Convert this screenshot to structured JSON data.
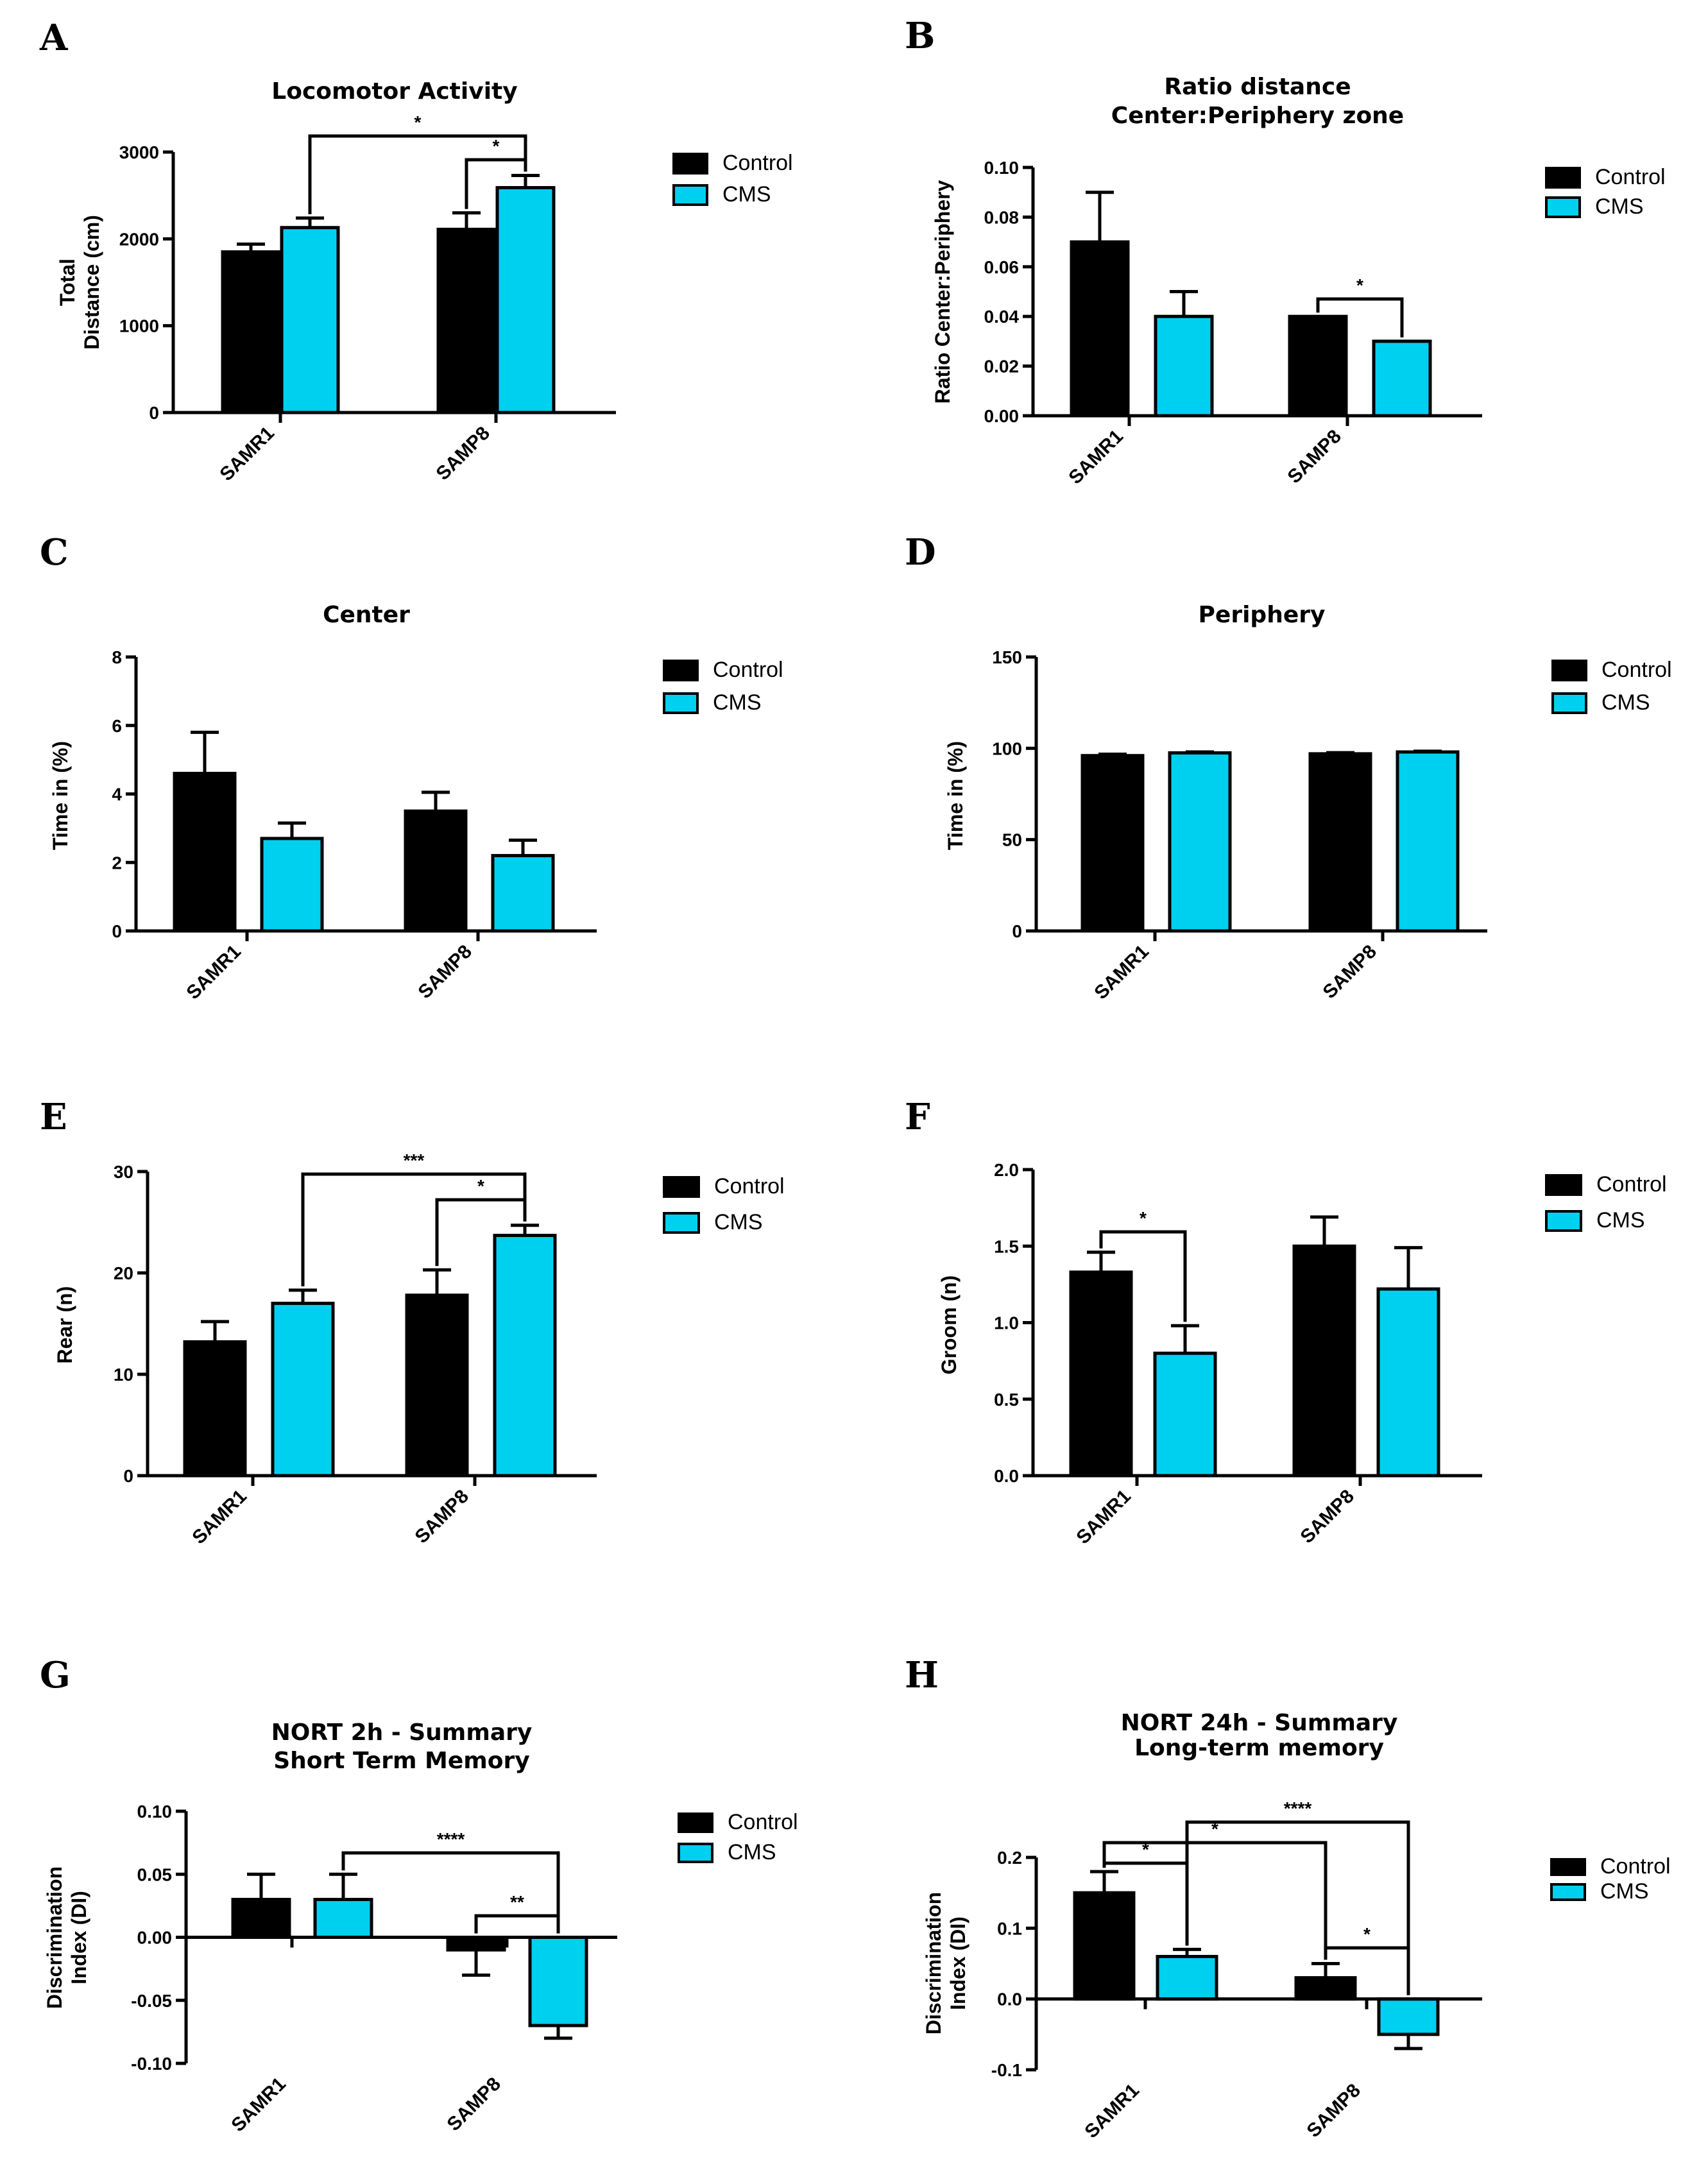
{
  "colors": {
    "control": "#000000",
    "cms": "#00d0f0"
  },
  "chart_data": [
    {
      "panel": "A",
      "type": "bar",
      "title": [
        "Locomotor Activity"
      ],
      "ylabel": [
        "Total",
        "Distance (cm)"
      ],
      "categories": [
        "SAMR1",
        "SAMP8"
      ],
      "ylim": [
        0,
        3000
      ],
      "ticks": [
        0,
        1000,
        2000,
        3000
      ],
      "tick_labels": [
        "0",
        "1000",
        "2000",
        "3000"
      ],
      "series": [
        {
          "name": "Control",
          "values": [
            1850,
            2110
          ],
          "errors": [
            90,
            190
          ]
        },
        {
          "name": "CMS",
          "values": [
            2130,
            2590
          ],
          "errors": [
            110,
            140
          ]
        }
      ],
      "significance": [
        {
          "from": [
            0,
            1
          ],
          "to": [
            1,
            1
          ],
          "label": "*"
        },
        {
          "from": [
            1,
            0
          ],
          "to": [
            1,
            1
          ],
          "label": "*"
        }
      ]
    },
    {
      "panel": "B",
      "type": "bar",
      "title": [
        "Ratio distance",
        "Center:Periphery zone"
      ],
      "ylabel": [
        "Ratio Center:Periphery"
      ],
      "categories": [
        "SAMR1",
        "SAMP8"
      ],
      "ylim": [
        0,
        0.1
      ],
      "ticks": [
        0,
        0.02,
        0.04,
        0.06,
        0.08,
        0.1
      ],
      "tick_labels": [
        "0.00",
        "0.02",
        "0.04",
        "0.06",
        "0.08",
        "0.10"
      ],
      "series": [
        {
          "name": "Control",
          "values": [
            0.07,
            0.04
          ],
          "errors": [
            0.02,
            0
          ]
        },
        {
          "name": "CMS",
          "values": [
            0.04,
            0.03
          ],
          "errors": [
            0.01,
            0
          ]
        }
      ],
      "significance": [
        {
          "from": [
            1,
            0
          ],
          "to": [
            1,
            1
          ],
          "label": "*"
        }
      ]
    },
    {
      "panel": "C",
      "type": "bar",
      "title": [
        "Center"
      ],
      "ylabel": [
        "Time in (%)"
      ],
      "categories": [
        "SAMR1",
        "SAMP8"
      ],
      "ylim": [
        0,
        8
      ],
      "ticks": [
        0,
        2,
        4,
        6,
        8
      ],
      "tick_labels": [
        "0",
        "2",
        "4",
        "6",
        "8"
      ],
      "series": [
        {
          "name": "Control",
          "values": [
            4.6,
            3.5
          ],
          "errors": [
            1.2,
            0.55
          ]
        },
        {
          "name": "CMS",
          "values": [
            2.7,
            2.2
          ],
          "errors": [
            0.45,
            0.45
          ]
        }
      ],
      "significance": []
    },
    {
      "panel": "D",
      "type": "bar",
      "title": [
        "Periphery"
      ],
      "ylabel": [
        "Time in (%)"
      ],
      "categories": [
        "SAMR1",
        "SAMP8"
      ],
      "ylim": [
        0,
        150
      ],
      "ticks": [
        0,
        50,
        100,
        150
      ],
      "tick_labels": [
        "0",
        "50",
        "100",
        "150"
      ],
      "series": [
        {
          "name": "Control",
          "values": [
            96,
            97
          ],
          "errors": [
            0.8,
            0.6
          ]
        },
        {
          "name": "CMS",
          "values": [
            97.5,
            98
          ],
          "errors": [
            0.5,
            0.4
          ]
        }
      ],
      "significance": []
    },
    {
      "panel": "E",
      "type": "bar",
      "title": [],
      "ylabel": [
        "Rear (n)"
      ],
      "categories": [
        "SAMR1",
        "SAMP8"
      ],
      "ylim": [
        0,
        30
      ],
      "ticks": [
        0,
        10,
        20,
        30
      ],
      "tick_labels": [
        "0",
        "10",
        "20",
        "30"
      ],
      "series": [
        {
          "name": "Control",
          "values": [
            13.2,
            17.8
          ],
          "errors": [
            2.0,
            2.5
          ]
        },
        {
          "name": "CMS",
          "values": [
            17.0,
            23.7
          ],
          "errors": [
            1.3,
            1.0
          ]
        }
      ],
      "significance": [
        {
          "from": [
            0,
            1
          ],
          "to": [
            1,
            1
          ],
          "label": "***"
        },
        {
          "from": [
            1,
            0
          ],
          "to": [
            1,
            1
          ],
          "label": "*"
        }
      ]
    },
    {
      "panel": "F",
      "type": "bar",
      "title": [],
      "ylabel": [
        "Groom (n)"
      ],
      "categories": [
        "SAMR1",
        "SAMP8"
      ],
      "ylim": [
        0,
        2
      ],
      "ticks": [
        0,
        0.5,
        1,
        1.5,
        2
      ],
      "tick_labels": [
        "0.0",
        "0.5",
        "1.0",
        "1.5",
        "2.0"
      ],
      "series": [
        {
          "name": "Control",
          "values": [
            1.33,
            1.5
          ],
          "errors": [
            0.13,
            0.19
          ]
        },
        {
          "name": "CMS",
          "values": [
            0.8,
            1.22
          ],
          "errors": [
            0.18,
            0.27
          ]
        }
      ],
      "significance": [
        {
          "from": [
            0,
            0
          ],
          "to": [
            0,
            1
          ],
          "label": "*"
        }
      ]
    },
    {
      "panel": "G",
      "type": "bar",
      "title": [
        "NORT 2h - Summary",
        "Short Term Memory"
      ],
      "ylabel": [
        "Discrimination",
        "Index (DI)"
      ],
      "categories": [
        "SAMR1",
        "SAMP8"
      ],
      "ylim": [
        -0.1,
        0.1
      ],
      "ticks": [
        -0.1,
        -0.05,
        0,
        0.05,
        0.1
      ],
      "tick_labels": [
        "-0.10",
        "-0.05",
        "0.00",
        "0.05",
        "0.10"
      ],
      "series": [
        {
          "name": "Control",
          "values": [
            0.03,
            -0.01
          ],
          "errors": [
            0.02,
            0.02
          ]
        },
        {
          "name": "CMS",
          "values": [
            0.03,
            -0.07
          ],
          "errors": [
            0.02,
            0.01
          ]
        }
      ],
      "significance": [
        {
          "from": [
            0,
            1
          ],
          "to": [
            1,
            1
          ],
          "label": "****"
        },
        {
          "from": [
            1,
            0
          ],
          "to": [
            1,
            1
          ],
          "label": "**"
        }
      ]
    },
    {
      "panel": "H",
      "type": "bar",
      "title": [
        "NORT 24h - Summary",
        "Long-term memory"
      ],
      "ylabel": [
        "Discrimination",
        "Index (DI)"
      ],
      "categories": [
        "SAMR1",
        "SAMP8"
      ],
      "ylim": [
        -0.1,
        0.2
      ],
      "ticks": [
        -0.1,
        0,
        0.1,
        0.2
      ],
      "tick_labels": [
        "-0.1",
        "0.0",
        "0.1",
        "0.2"
      ],
      "series": [
        {
          "name": "Control",
          "values": [
            0.15,
            0.03
          ],
          "errors": [
            0.03,
            0.02
          ]
        },
        {
          "name": "CMS",
          "values": [
            0.06,
            -0.05
          ],
          "errors": [
            0.01,
            0.02
          ]
        }
      ],
      "significance": [
        {
          "from": [
            0,
            0
          ],
          "to": [
            0,
            1
          ],
          "label": "*"
        },
        {
          "from": [
            0,
            0
          ],
          "to": [
            1,
            0
          ],
          "label": "*"
        },
        {
          "from": [
            0,
            1
          ],
          "to": [
            1,
            1
          ],
          "label": "****"
        },
        {
          "from": [
            1,
            0
          ],
          "to": [
            1,
            1
          ],
          "label": "*"
        }
      ]
    }
  ]
}
